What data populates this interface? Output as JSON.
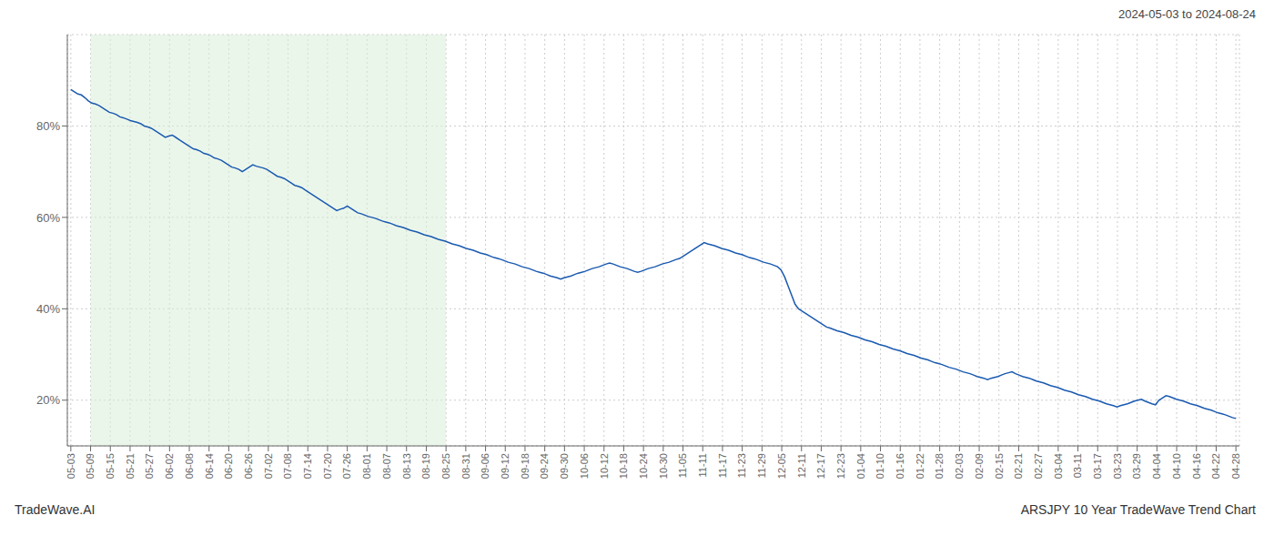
{
  "chart_data": {
    "type": "line",
    "title": "ARSJPY 10 Year TradeWave Trend Chart",
    "subtitle": "2024-05-03 to 2024-08-24",
    "annotations": [
      "TradeWave.AI"
    ],
    "color": "#1a5ab0",
    "grid": true,
    "xlim": [
      -1,
      334
    ],
    "xticks": [
      {
        "value": 0,
        "label": "05-03"
      },
      {
        "value": 5.644068,
        "label": "05-09"
      },
      {
        "value": 11.288136,
        "label": "05-15"
      },
      {
        "value": 16.932203,
        "label": "05-21"
      },
      {
        "value": 22.576271,
        "label": "05-27"
      },
      {
        "value": 28.220339,
        "label": "06-02"
      },
      {
        "value": 33.864407,
        "label": "06-08"
      },
      {
        "value": 39.508475,
        "label": "06-14"
      },
      {
        "value": 45.152542,
        "label": "06-20"
      },
      {
        "value": 50.79661,
        "label": "06-26"
      },
      {
        "value": 56.440678,
        "label": "07-02"
      },
      {
        "value": 62.084746,
        "label": "07-08"
      },
      {
        "value": 67.728814,
        "label": "07-14"
      },
      {
        "value": 73.372881,
        "label": "07-20"
      },
      {
        "value": 79.016949,
        "label": "07-26"
      },
      {
        "value": 84.661017,
        "label": "08-01"
      },
      {
        "value": 90.305085,
        "label": "08-07"
      },
      {
        "value": 95.949153,
        "label": "08-13"
      },
      {
        "value": 101.59322,
        "label": "08-19"
      },
      {
        "value": 107.237288,
        "label": "08-25"
      },
      {
        "value": 112.881356,
        "label": "08-31"
      },
      {
        "value": 118.525424,
        "label": "09-06"
      },
      {
        "value": 124.169492,
        "label": "09-12"
      },
      {
        "value": 129.813559,
        "label": "09-18"
      },
      {
        "value": 135.457627,
        "label": "09-24"
      },
      {
        "value": 141.101695,
        "label": "09-30"
      },
      {
        "value": 146.745763,
        "label": "10-06"
      },
      {
        "value": 152.389831,
        "label": "10-12"
      },
      {
        "value": 158.033898,
        "label": "10-18"
      },
      {
        "value": 163.677966,
        "label": "10-24"
      },
      {
        "value": 169.322034,
        "label": "10-30"
      },
      {
        "value": 174.966102,
        "label": "11-05"
      },
      {
        "value": 180.610169,
        "label": "11-11"
      },
      {
        "value": 186.254237,
        "label": "11-17"
      },
      {
        "value": 191.898305,
        "label": "11-23"
      },
      {
        "value": 197.542373,
        "label": "11-29"
      },
      {
        "value": 203.186441,
        "label": "12-05"
      },
      {
        "value": 208.830508,
        "label": "12-11"
      },
      {
        "value": 214.474576,
        "label": "12-17"
      },
      {
        "value": 220.118644,
        "label": "12-23"
      },
      {
        "value": 225.762712,
        "label": "01-04"
      },
      {
        "value": 231.40678,
        "label": "01-10"
      },
      {
        "value": 237.050847,
        "label": "01-16"
      },
      {
        "value": 242.694915,
        "label": "01-22"
      },
      {
        "value": 248.338983,
        "label": "01-28"
      },
      {
        "value": 253.983051,
        "label": "02-03"
      },
      {
        "value": 259.627119,
        "label": "02-09"
      },
      {
        "value": 265.271186,
        "label": "02-15"
      },
      {
        "value": 270.915254,
        "label": "02-21"
      },
      {
        "value": 276.559322,
        "label": "02-27"
      },
      {
        "value": 282.20339,
        "label": "03-04"
      },
      {
        "value": 287.847458,
        "label": "03-11"
      },
      {
        "value": 293.491525,
        "label": "03-17"
      },
      {
        "value": 299.135593,
        "label": "03-23"
      },
      {
        "value": 304.779661,
        "label": "03-29"
      },
      {
        "value": 310.423729,
        "label": "04-04"
      },
      {
        "value": 316.067797,
        "label": "04-10"
      },
      {
        "value": 321.711864,
        "label": "04-16"
      },
      {
        "value": 327.355932,
        "label": "04-22"
      },
      {
        "value": 333,
        "label": "04-28"
      }
    ],
    "ylim": [
      10,
      100
    ],
    "yticks": [
      {
        "value": 20,
        "label": "20%"
      },
      {
        "value": 40,
        "label": "40%"
      },
      {
        "value": 60,
        "label": "60%"
      },
      {
        "value": 80,
        "label": "80%"
      }
    ],
    "shaded_region": {
      "x": [
        5.644068,
        107.237288
      ],
      "color": "#daeeda"
    },
    "values": [
      88,
      87.5,
      87,
      86.8,
      86.2,
      85.5,
      85,
      84.8,
      84.5,
      84,
      83.5,
      83,
      82.8,
      82.5,
      82,
      81.8,
      81.5,
      81.2,
      81,
      80.8,
      80.5,
      80,
      79.8,
      79.5,
      79,
      78.5,
      78,
      77.5,
      77.8,
      78,
      77.5,
      77,
      76.5,
      76,
      75.5,
      75,
      74.8,
      74.5,
      74,
      73.8,
      73.5,
      73,
      72.8,
      72.5,
      72,
      71.5,
      71,
      70.8,
      70.5,
      70,
      70.5,
      71,
      71.5,
      71.2,
      71,
      70.8,
      70.5,
      70,
      69.5,
      69,
      68.8,
      68.5,
      68,
      67.5,
      67,
      66.8,
      66.5,
      66,
      65.5,
      65,
      64.5,
      64,
      63.5,
      63,
      62.5,
      62,
      61.5,
      61.8,
      62,
      62.5,
      62,
      61.5,
      61,
      60.8,
      60.5,
      60.2,
      60,
      59.8,
      59.5,
      59.2,
      59,
      58.8,
      58.5,
      58.2,
      58,
      57.8,
      57.5,
      57.2,
      57,
      56.8,
      56.5,
      56.2,
      56,
      55.8,
      55.5,
      55.2,
      55,
      54.8,
      54.5,
      54.2,
      54,
      53.8,
      53.5,
      53.2,
      53,
      52.8,
      52.5,
      52.2,
      52,
      51.8,
      51.5,
      51.2,
      51,
      50.8,
      50.5,
      50.2,
      50,
      49.8,
      49.5,
      49.2,
      49,
      48.8,
      48.5,
      48.2,
      48,
      47.8,
      47.5,
      47.2,
      47,
      46.8,
      46.5,
      46.8,
      47,
      47.2,
      47.5,
      47.8,
      48,
      48.2,
      48.5,
      48.8,
      49,
      49.2,
      49.5,
      49.8,
      50,
      49.8,
      49.5,
      49.2,
      49,
      48.8,
      48.5,
      48.2,
      48,
      48.2,
      48.5,
      48.8,
      49,
      49.2,
      49.5,
      49.8,
      50,
      50.2,
      50.5,
      50.8,
      51,
      51.5,
      52,
      52.5,
      53,
      53.5,
      54,
      54.5,
      54.2,
      54,
      53.8,
      53.5,
      53.2,
      53,
      52.8,
      52.5,
      52.2,
      52,
      51.8,
      51.5,
      51.2,
      51,
      50.8,
      50.5,
      50.2,
      50,
      49.8,
      49.5,
      49.2,
      48.5,
      47,
      45,
      43,
      41,
      40,
      39.5,
      39,
      38.5,
      38,
      37.5,
      37,
      36.5,
      36,
      35.8,
      35.5,
      35.2,
      35,
      34.8,
      34.5,
      34.2,
      34,
      33.8,
      33.5,
      33.2,
      33,
      32.8,
      32.5,
      32.2,
      32,
      31.8,
      31.5,
      31.2,
      31,
      30.8,
      30.5,
      30.2,
      30,
      29.8,
      29.5,
      29.2,
      29,
      28.8,
      28.5,
      28.2,
      28,
      27.8,
      27.5,
      27.2,
      27,
      26.8,
      26.5,
      26.2,
      26,
      25.8,
      25.5,
      25.2,
      25,
      24.8,
      24.5,
      24.8,
      25,
      25.2,
      25.5,
      25.8,
      26,
      26.2,
      25.8,
      25.5,
      25.2,
      25,
      24.8,
      24.5,
      24.2,
      24,
      23.8,
      23.5,
      23.2,
      23,
      22.8,
      22.5,
      22.2,
      22,
      21.8,
      21.5,
      21.2,
      21,
      20.8,
      20.5,
      20.2,
      20,
      19.8,
      19.5,
      19.2,
      19,
      18.8,
      18.5,
      18.8,
      19,
      19.2,
      19.5,
      19.8,
      20,
      20.2,
      19.8,
      19.5,
      19.2,
      19,
      20,
      20.5,
      21,
      20.8,
      20.5,
      20.2,
      20,
      19.8,
      19.5,
      19.2,
      19,
      18.8,
      18.5,
      18.2,
      18,
      17.8,
      17.5,
      17.2,
      17,
      16.8,
      16.5,
      16.2,
      16
    ]
  }
}
